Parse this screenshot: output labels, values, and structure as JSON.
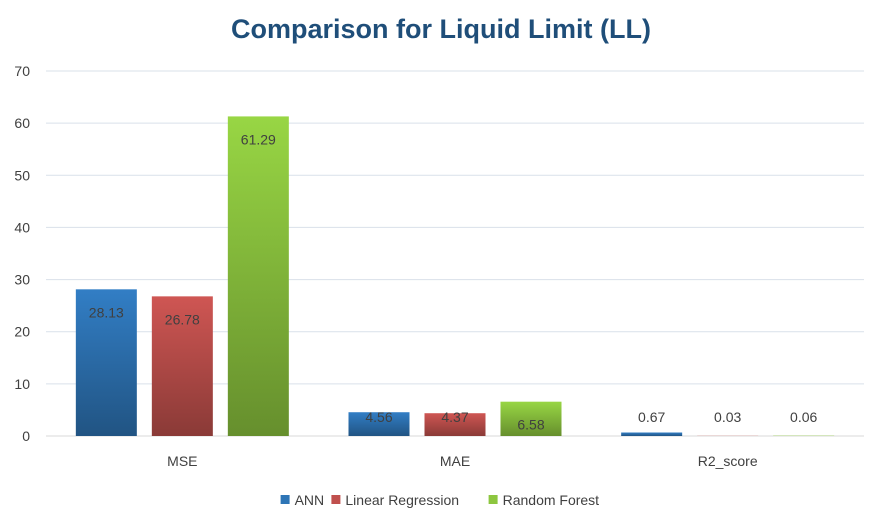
{
  "chart_data": {
    "type": "bar",
    "title": "Comparison for Liquid Limit (LL)",
    "categories": [
      "MSE",
      "MAE",
      "R2_score"
    ],
    "series": [
      {
        "name": "ANN",
        "values": [
          28.13,
          4.56,
          0.67
        ],
        "labels": [
          "28.13",
          "4.56",
          "0.67"
        ],
        "color": "#2e75b6"
      },
      {
        "name": "Linear Regression",
        "values": [
          26.78,
          4.37,
          0.03
        ],
        "labels": [
          "26.78",
          "4.37",
          "0.03"
        ],
        "color": "#c0504d"
      },
      {
        "name": "Random Forest",
        "values": [
          61.29,
          6.58,
          0.06
        ],
        "labels": [
          "61.29",
          "6.58",
          "0.06"
        ],
        "color": "#8dc63f"
      }
    ],
    "ylim": [
      0,
      70
    ],
    "yticks": [
      "0",
      "10",
      "20",
      "30",
      "40",
      "50",
      "60",
      "70"
    ],
    "grid": true,
    "legend_position": "bottom"
  }
}
